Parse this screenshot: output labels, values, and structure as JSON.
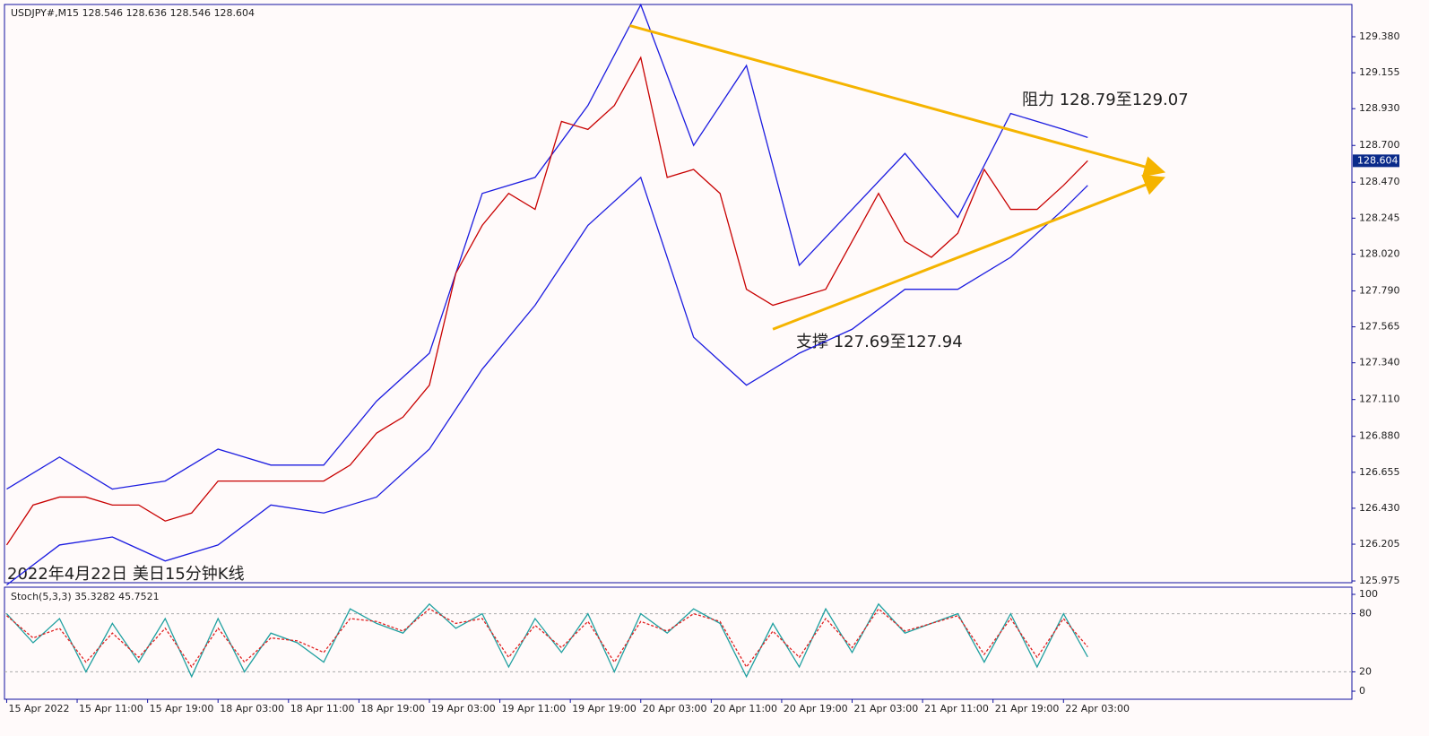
{
  "chart_data": [
    {
      "type": "line",
      "title": "USDJPY#,M15",
      "ohlc": [
        128.546,
        128.636,
        128.546,
        128.604
      ],
      "x": [
        0,
        12,
        24,
        36,
        48,
        60,
        72,
        84,
        96,
        108,
        120,
        132,
        144,
        156,
        168,
        180,
        192,
        204,
        216,
        228,
        240,
        252,
        264,
        276,
        288,
        300,
        312,
        324,
        336,
        348,
        360,
        372,
        384,
        396,
        408,
        420,
        432,
        444,
        456,
        468,
        480,
        491
      ],
      "series": [
        {
          "color": "#c80000",
          "values": [
            126.2,
            126.45,
            126.5,
            126.5,
            126.45,
            126.45,
            126.35,
            126.4,
            126.6,
            126.6,
            126.6,
            126.6,
            126.6,
            126.7,
            126.9,
            127.0,
            127.2,
            127.9,
            128.2,
            128.4,
            128.3,
            128.85,
            128.8,
            128.95,
            129.25,
            128.5,
            128.55,
            128.4,
            127.8,
            127.7,
            127.75,
            127.8,
            128.1,
            128.4,
            128.1,
            128.0,
            128.15,
            128.55,
            128.3,
            128.3,
            128.45,
            128.604
          ]
        }
      ],
      "band_x": [
        0,
        24,
        48,
        72,
        96,
        120,
        144,
        168,
        192,
        216,
        240,
        264,
        288,
        312,
        336,
        360,
        384,
        408,
        432,
        456,
        480,
        491
      ],
      "bands": [
        {
          "color": "#1c1ce0",
          "values": [
            126.55,
            126.75,
            126.55,
            126.6,
            126.8,
            126.7,
            126.7,
            127.1,
            127.4,
            128.4,
            128.5,
            128.95,
            129.58,
            128.7,
            129.2,
            127.95,
            128.3,
            128.65,
            128.25,
            128.9,
            128.8,
            128.75
          ]
        },
        {
          "color": "#1c1ce0",
          "values": [
            125.95,
            126.2,
            126.25,
            126.1,
            126.2,
            126.45,
            126.4,
            126.5,
            126.8,
            127.3,
            127.7,
            128.2,
            128.5,
            127.5,
            127.2,
            127.4,
            127.55,
            127.8,
            127.8,
            128.0,
            128.3,
            128.45
          ]
        }
      ],
      "trendlines": [
        {
          "x": [
            283,
            524
          ],
          "y": [
            129.45,
            128.54
          ]
        },
        {
          "x": [
            348,
            524
          ],
          "y": [
            127.55,
            128.49
          ]
        }
      ],
      "trend_color": "#f5b400",
      "annotations": [
        "阻力 128.79至129.07",
        "支撑 127.69至127.94",
        "2022年4月22日 美日15分钟K线"
      ],
      "xlim": [
        -1,
        611
      ],
      "ylim": [
        125.964,
        129.582
      ],
      "yticks": [
        {
          "value": 129.38,
          "label": "129.380"
        },
        129.155,
        {
          "value": 128.93,
          "label": "128.930"
        },
        {
          "value": 128.7,
          "label": "128.700"
        },
        {
          "value": 128.47,
          "label": "128.470"
        },
        128.245,
        {
          "value": 128.02,
          "label": "128.020"
        },
        {
          "value": 127.79,
          "label": "127.790"
        },
        127.565,
        {
          "value": 127.34,
          "label": "127.340"
        },
        {
          "value": 127.11,
          "label": "127.110"
        },
        {
          "value": 126.88,
          "label": "126.880"
        },
        126.655,
        {
          "value": 126.43,
          "label": "126.430"
        },
        126.205,
        125.975
      ]
    },
    {
      "type": "line",
      "title": "Stoch(5,3,3)",
      "x": [
        0,
        12,
        24,
        36,
        48,
        60,
        72,
        84,
        96,
        108,
        120,
        132,
        144,
        156,
        168,
        180,
        192,
        204,
        216,
        228,
        240,
        252,
        264,
        276,
        288,
        300,
        312,
        324,
        336,
        348,
        360,
        372,
        384,
        396,
        408,
        420,
        432,
        444,
        456,
        468,
        480,
        491
      ],
      "series": [
        {
          "color": "#20a0a0",
          "dashed": false,
          "values": [
            80,
            50,
            75,
            20,
            70,
            30,
            75,
            15,
            75,
            20,
            60,
            50,
            30,
            85,
            70,
            60,
            90,
            65,
            80,
            25,
            75,
            40,
            80,
            20,
            80,
            60,
            85,
            70,
            15,
            70,
            25,
            85,
            40,
            90,
            60,
            70,
            80,
            30,
            80,
            25,
            80,
            35.3282
          ]
        },
        {
          "color": "#e02020",
          "dashed": true,
          "values": [
            78,
            55,
            65,
            30,
            60,
            35,
            65,
            25,
            65,
            30,
            55,
            52,
            40,
            75,
            72,
            62,
            85,
            70,
            75,
            35,
            68,
            45,
            72,
            30,
            72,
            62,
            80,
            72,
            25,
            62,
            35,
            75,
            45,
            85,
            62,
            70,
            78,
            38,
            75,
            35,
            75,
            45.7521
          ]
        }
      ],
      "xlim": [
        -1,
        611
      ],
      "ylim": [
        -8.3,
        107.4
      ],
      "yticks": [
        0,
        20,
        80,
        100
      ],
      "levels": [
        20,
        80
      ],
      "xticks": [
        {
          "value": 0,
          "label": "15 Apr 2022"
        },
        {
          "value": 32,
          "label": "15 Apr 11:00"
        },
        {
          "value": 64,
          "label": "15 Apr 19:00"
        },
        {
          "value": 96,
          "label": "18 Apr 03:00"
        },
        {
          "value": 128,
          "label": "18 Apr 11:00"
        },
        {
          "value": 160,
          "label": "18 Apr 19:00"
        },
        {
          "value": 192,
          "label": "19 Apr 03:00"
        },
        {
          "value": 224,
          "label": "19 Apr 11:00"
        },
        {
          "value": 256,
          "label": "19 Apr 19:00"
        },
        {
          "value": 288,
          "label": "20 Apr 03:00"
        },
        {
          "value": 320,
          "label": "20 Apr 11:00"
        },
        {
          "value": 352,
          "label": "20 Apr 19:00"
        },
        {
          "value": 384,
          "label": "21 Apr 03:00"
        },
        {
          "value": 416,
          "label": "21 Apr 11:00"
        },
        {
          "value": 448,
          "label": "21 Apr 19:00"
        },
        {
          "value": 480,
          "label": "22 Apr 03:00"
        }
      ]
    }
  ]
}
